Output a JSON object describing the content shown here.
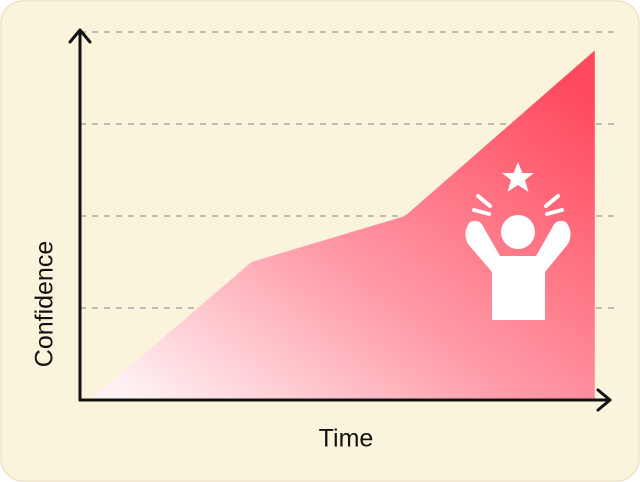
{
  "chart_data": {
    "type": "area",
    "x_label": "Time",
    "y_label": "Confidence",
    "x": [
      0.2,
      3.3,
      6.25,
      9.9
    ],
    "values": [
      0,
      1.5,
      2,
      3.8
    ],
    "xlim": [
      0,
      10
    ],
    "ylim": [
      0,
      4
    ],
    "grid_lines": [
      1,
      2,
      3,
      4
    ],
    "color": "#ff4a5e"
  }
}
